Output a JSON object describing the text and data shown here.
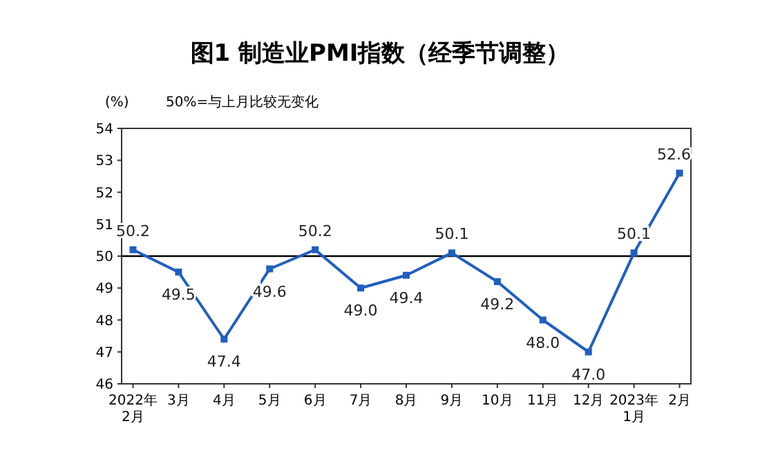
{
  "chart_data": {
    "type": "line",
    "title": "图1 制造业PMI指数（经季节调整）",
    "ylabel": "(%)",
    "annotations": [
      "50%=与上月比较无变化"
    ],
    "categories": [
      "2022年\n2月",
      "3月",
      "4月",
      "5月",
      "6月",
      "7月",
      "8月",
      "9月",
      "10月",
      "11月",
      "12月",
      "2023年\n1月",
      "2月"
    ],
    "series": [
      {
        "color": "#1f5fbf",
        "values": [
          50.2,
          49.5,
          47.4,
          49.6,
          50.2,
          49.0,
          49.4,
          50.1,
          49.2,
          48.0,
          47.0,
          50.1,
          52.6
        ],
        "value_labels": [
          "50.2",
          "49.5",
          "47.4",
          "49.6",
          "50.2",
          "49.0",
          "49.4",
          "50.1",
          "49.2",
          "48.0",
          "47.0",
          "50.1",
          "52.6"
        ]
      }
    ],
    "ylim": [
      46,
      54
    ],
    "yticks": [
      46,
      47,
      48,
      49,
      50,
      51,
      52,
      53,
      54
    ],
    "ref_lines": [
      {
        "axis": "y",
        "value": 50,
        "color": "#000000"
      }
    ],
    "marker": "square",
    "line_style": "solid",
    "grid": false
  }
}
